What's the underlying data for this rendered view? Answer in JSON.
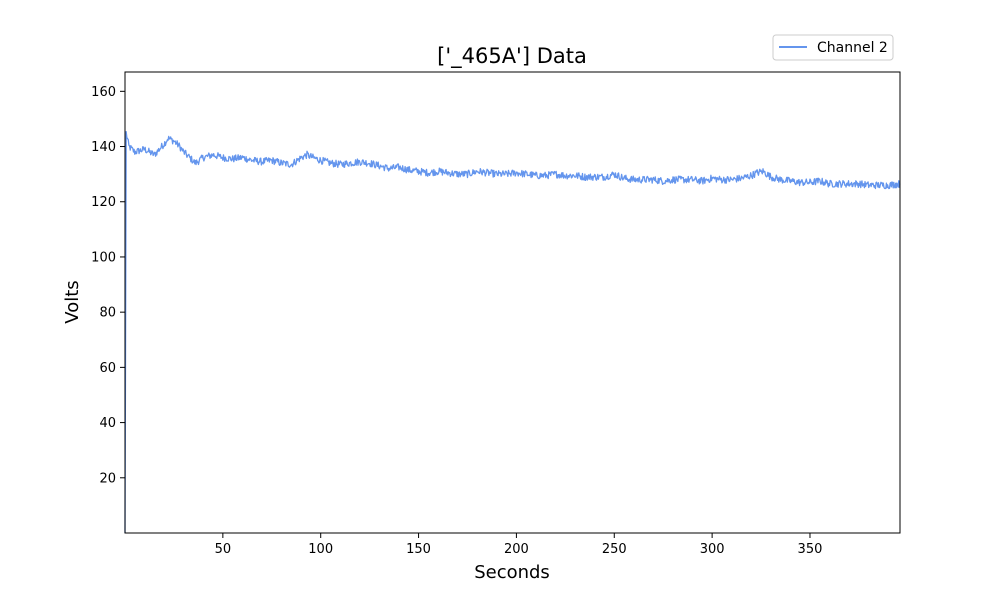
{
  "chart_data": {
    "type": "line",
    "title": "['_465A'] Data",
    "xlabel": "Seconds",
    "ylabel": "Volts",
    "xlim": [
      0,
      396
    ],
    "ylim": [
      0,
      167
    ],
    "xticks": [
      50,
      100,
      150,
      200,
      250,
      300,
      350
    ],
    "yticks": [
      20,
      40,
      60,
      80,
      100,
      120,
      140,
      160
    ],
    "grid": false,
    "legend": "top-right",
    "series": [
      {
        "name": "Channel 2",
        "color": "#6495ed",
        "x": [
          0,
          0.6,
          2,
          5,
          10,
          15,
          20,
          22,
          25,
          28,
          30,
          33,
          36,
          40,
          45,
          50,
          55,
          60,
          65,
          70,
          75,
          80,
          85,
          90,
          93,
          96,
          100,
          105,
          110,
          115,
          120,
          125,
          130,
          135,
          140,
          145,
          150,
          155,
          160,
          165,
          170,
          175,
          180,
          185,
          190,
          195,
          200,
          205,
          210,
          215,
          220,
          225,
          230,
          235,
          240,
          245,
          250,
          255,
          260,
          265,
          270,
          275,
          280,
          285,
          290,
          295,
          300,
          305,
          310,
          315,
          320,
          323,
          326,
          330,
          335,
          340,
          345,
          350,
          355,
          360,
          365,
          370,
          375,
          380,
          385,
          390,
          396
        ],
        "y": [
          0,
          145,
          140,
          138,
          139,
          137,
          141,
          143,
          142,
          140,
          138,
          136,
          134,
          136,
          137,
          136,
          135.5,
          136,
          135,
          134.5,
          135,
          134,
          133.5,
          136,
          137,
          136,
          135,
          134,
          133.5,
          134,
          134.5,
          134,
          133,
          132,
          132.5,
          131.5,
          131,
          130.5,
          131,
          130.5,
          130,
          130,
          131,
          130.5,
          130,
          130,
          130.5,
          130,
          129.5,
          129.5,
          130,
          129.5,
          129.5,
          129,
          129,
          129,
          130,
          128.5,
          128,
          128,
          128,
          127.5,
          128,
          128,
          128,
          127.5,
          128.5,
          128,
          128,
          128.5,
          129.5,
          130.5,
          131,
          129,
          128,
          127.5,
          127,
          127,
          127.5,
          126.5,
          126.5,
          126.5,
          126.5,
          126,
          126,
          126,
          126.5
        ]
      }
    ]
  }
}
